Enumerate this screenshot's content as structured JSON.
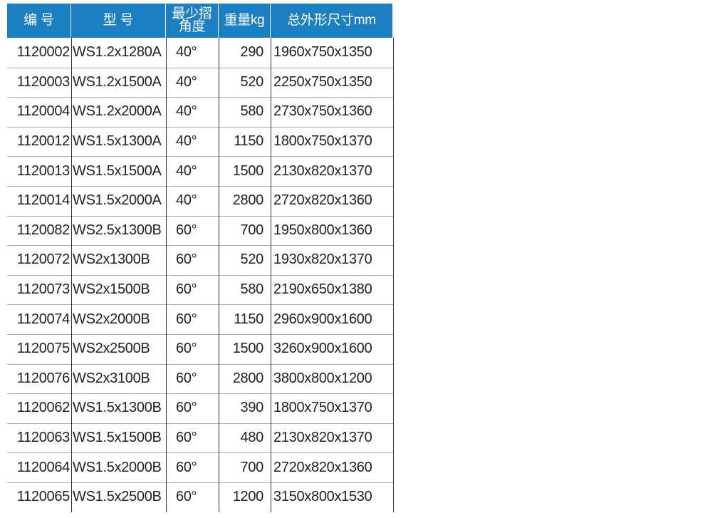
{
  "table": {
    "headers": [
      "编 号",
      "型 号",
      "最少摺\n角度",
      "重量kg",
      "总外形尺寸mm"
    ],
    "rows": [
      [
        "1120002",
        "WS1.2x1280A",
        "40°",
        "290",
        "1960x750x1350"
      ],
      [
        "1120003",
        "WS1.2x1500A",
        "40°",
        "520",
        "2250x750x1350"
      ],
      [
        "1120004",
        "WS1.2x2000A",
        "40°",
        "580",
        "2730x750x1360"
      ],
      [
        "1120012",
        "WS1.5x1300A",
        "40°",
        "1150",
        "1800x750x1370"
      ],
      [
        "1120013",
        "WS1.5x1500A",
        "40°",
        "1500",
        "2130x820x1370"
      ],
      [
        "1120014",
        "WS1.5x2000A",
        "40°",
        "2800",
        "2720x820x1360"
      ],
      [
        "1120082",
        "WS2.5x1300B",
        "60°",
        "700",
        "1950x800x1360"
      ],
      [
        "1120072",
        "WS2x1300B",
        "60°",
        "520",
        "1930x820x1370"
      ],
      [
        "1120073",
        "WS2x1500B",
        "60°",
        "580",
        "2190x650x1380"
      ],
      [
        "1120074",
        "WS2x2000B",
        "60°",
        "1150",
        "2960x900x1600"
      ],
      [
        "1120075",
        "WS2x2500B",
        "60°",
        "1500",
        "3260x900x1600"
      ],
      [
        "1120076",
        "WS2x3100B",
        "60°",
        "2800",
        "3800x800x1200"
      ],
      [
        "1120062",
        "WS1.5x1300B",
        "60°",
        "390",
        "1800x750x1370"
      ],
      [
        "1120063",
        "WS1.5x1500B",
        "60°",
        "480",
        "2130x820x1370"
      ],
      [
        "1120064",
        "WS1.5x2000B",
        "60°",
        "700",
        "2720x820x1360"
      ],
      [
        "1120065",
        "WS1.5x2500B",
        "60°",
        "1200",
        "3150x800x1530"
      ]
    ]
  }
}
